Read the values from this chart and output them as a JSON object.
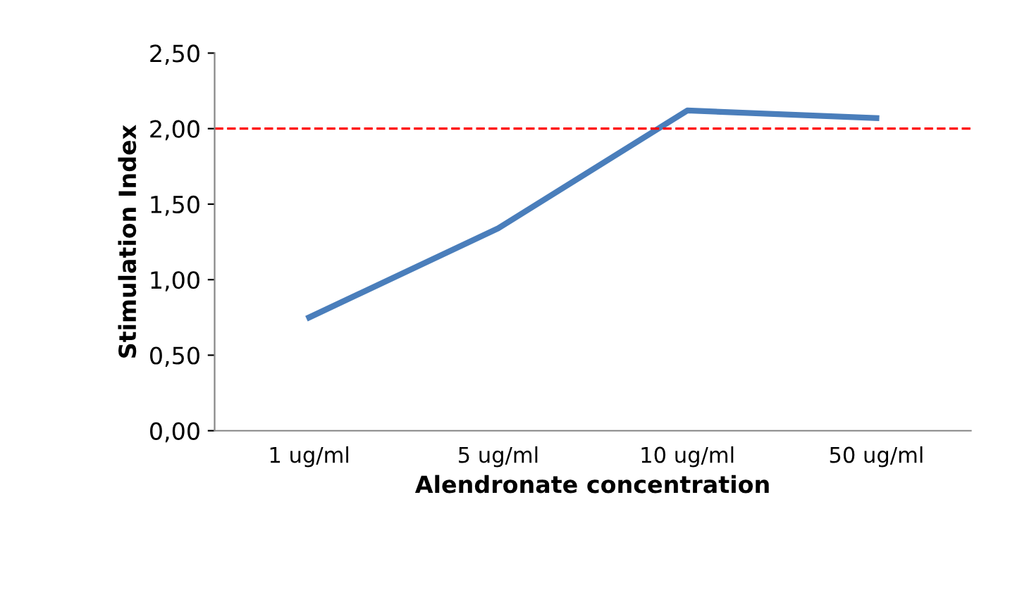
{
  "chart_data": {
    "type": "line",
    "xlabel": "Alendronate concentration",
    "ylabel": "Stimulation Index",
    "categories": [
      "1 ug/ml",
      "5 ug/ml",
      "10 ug/ml",
      "50 ug/ml"
    ],
    "series": [
      {
        "color": "#4a7ebb",
        "values": [
          0.75,
          1.34,
          2.12,
          2.07
        ]
      }
    ],
    "ylim": [
      0,
      2.5
    ],
    "yticks": [
      {
        "value": 0,
        "label": "0,00"
      },
      {
        "value": 0.5,
        "label": "0,50"
      },
      {
        "value": 1.0,
        "label": "1,00"
      },
      {
        "value": 1.5,
        "label": "1,50"
      },
      {
        "value": 2.0,
        "label": "2,00"
      },
      {
        "value": 2.5,
        "label": "2,50"
      }
    ],
    "ref_lines": [
      {
        "axis": "y",
        "value": 2.0,
        "color": "#ff0000",
        "line_style": "dashed"
      }
    ],
    "grid": false,
    "legend": false,
    "marker": "none",
    "line_style": "solid"
  }
}
